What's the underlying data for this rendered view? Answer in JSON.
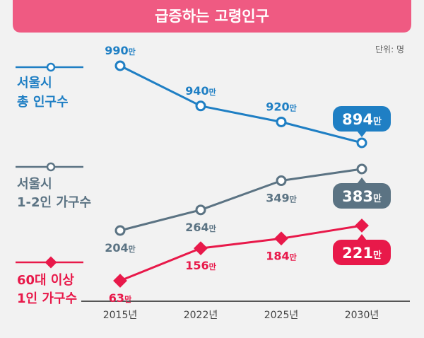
{
  "chart_data": {
    "type": "line",
    "title": "급증하는 고령인구",
    "unit_label": "단위: 명",
    "categories": [
      "2015년",
      "2022년",
      "2025년",
      "2030년"
    ],
    "series": [
      {
        "name_lines": [
          "서울시",
          "총 인구수"
        ],
        "values": [
          990,
          940,
          920,
          894
        ],
        "labels": [
          "990만",
          "940만",
          "920만",
          "894만"
        ],
        "color": "#1f7fc4",
        "marker": "circle",
        "label_pos": [
          "above",
          "above",
          "above",
          "badge"
        ]
      },
      {
        "name_lines": [
          "서울시",
          "1-2인 가구수"
        ],
        "values": [
          204,
          264,
          349,
          383
        ],
        "labels": [
          "204만",
          "264만",
          "349만",
          "383만"
        ],
        "color": "#5b7383",
        "marker": "circle",
        "label_pos": [
          "below",
          "below",
          "below",
          "badge"
        ]
      },
      {
        "name_lines": [
          "60대 이상",
          "1인 가구수"
        ],
        "values": [
          63,
          156,
          184,
          221
        ],
        "labels": [
          "63만",
          "156만",
          "184만",
          "221만"
        ],
        "color": "#e8194a",
        "marker": "diamond",
        "label_pos": [
          "below",
          "below",
          "below",
          "badge"
        ]
      }
    ]
  },
  "colors": {
    "title_bar": "#ef5a82",
    "background": "#f2f2f2",
    "axis": "#222222"
  }
}
